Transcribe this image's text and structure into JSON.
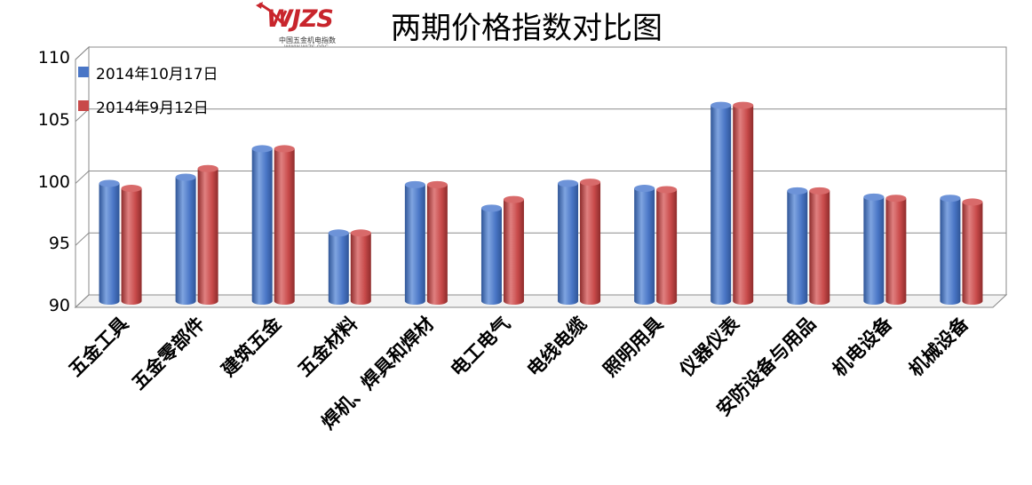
{
  "chart_data": {
    "type": "bar",
    "title": "两期价格指数对比图",
    "categories": [
      "五金工具",
      "五金零部件",
      "建筑五金",
      "五金材料",
      "焊机、焊具和焊材",
      "电工电气",
      "电线电缆",
      "照明用具",
      "仪器仪表",
      "安防设备与用品",
      "机电设备",
      "机械设备"
    ],
    "series": [
      {
        "name": "2014年10月17日",
        "color": "#4a76c6",
        "values": [
          99.5,
          100.0,
          102.3,
          95.5,
          99.4,
          97.5,
          99.5,
          99.1,
          105.8,
          98.9,
          98.4,
          98.3
        ]
      },
      {
        "name": "2014年9月12日",
        "color": "#c84a4a",
        "values": [
          99.1,
          100.7,
          102.3,
          95.5,
          99.4,
          98.2,
          99.6,
          99.0,
          105.8,
          98.9,
          98.3,
          98.0
        ]
      }
    ],
    "ylim": [
      90,
      110
    ],
    "yticks": [
      90,
      95,
      100,
      105,
      110
    ],
    "xlabel": "",
    "ylabel": "",
    "grid": true,
    "legend": "top-left",
    "style": "3d-cylinder"
  },
  "logo": {
    "mark_text": "WJZS",
    "org_name": "中国五金机电指数",
    "url": "WWW.WJZS.ORG",
    "color": "#c8252c"
  }
}
